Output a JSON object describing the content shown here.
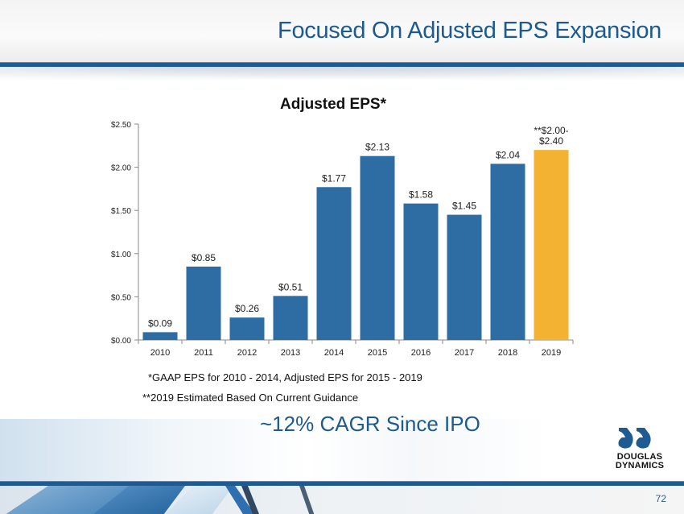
{
  "slide": {
    "title": "Focused On Adjusted EPS Expansion",
    "page_number": "72",
    "cagr_text": "~12% CAGR Since IPO",
    "footnotes": [
      "*GAAP  EPS for 2010 - 2014, Adjusted EPS for 2015 - 2019",
      "**2019 Estimated Based On Current Guidance"
    ],
    "logo": {
      "line1": "DOUGLAS",
      "line2": "DYNAMICS",
      "icon": "dd-plow-logo-icon"
    },
    "colors": {
      "brand_blue": "#1e5b92",
      "bar_blue": "#2e6da4",
      "bar_gold": "#f4b232",
      "title_blue": "#1c5a8f"
    }
  },
  "chart_data": {
    "type": "bar",
    "title": "Adjusted EPS*",
    "xlabel": "",
    "ylabel": "",
    "categories": [
      "2010",
      "2011",
      "2012",
      "2013",
      "2014",
      "2015",
      "2016",
      "2017",
      "2018",
      "2019"
    ],
    "values": [
      0.09,
      0.85,
      0.26,
      0.51,
      1.77,
      2.13,
      1.58,
      1.45,
      2.04,
      2.2
    ],
    "data_labels": [
      "$0.09",
      "$0.85",
      "$0.26",
      "$0.51",
      "$1.77",
      "$2.13",
      "$1.58",
      "$1.45",
      "$2.04",
      "**$2.00-\n$2.40"
    ],
    "bar_colors": [
      "#2e6da4",
      "#2e6da4",
      "#2e6da4",
      "#2e6da4",
      "#2e6da4",
      "#2e6da4",
      "#2e6da4",
      "#2e6da4",
      "#2e6da4",
      "#f4b232"
    ],
    "estimate_range": {
      "category": "2019",
      "low": 2.0,
      "high": 2.4
    },
    "ylim": [
      0,
      2.5
    ],
    "yticks": [
      0,
      0.5,
      1.0,
      1.5,
      2.0,
      2.5
    ],
    "ytick_labels": [
      "$0.00",
      "$0.50",
      "$1.00",
      "$1.50",
      "$2.00",
      "$2.50"
    ],
    "grid": false,
    "legend": "none"
  }
}
